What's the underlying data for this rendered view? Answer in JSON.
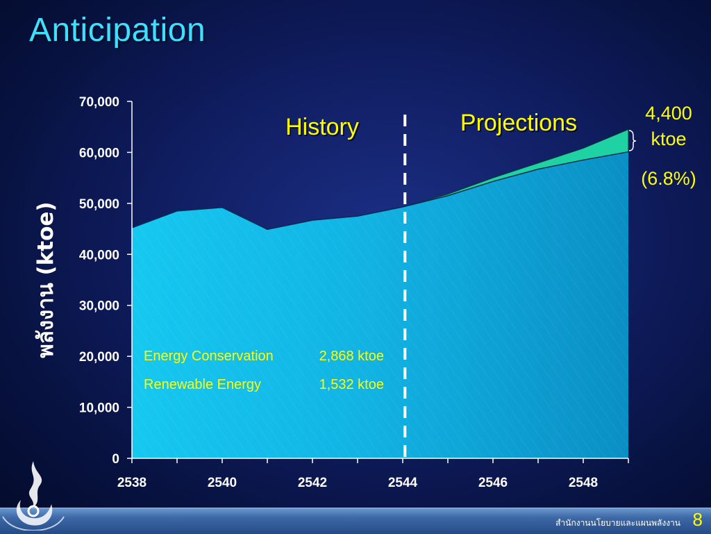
{
  "slide": {
    "title": "Anticipation",
    "footer_org": "สำนักงานนโยบายและแผนพลังงาน",
    "page_number": "8"
  },
  "colors": {
    "history_fill": "#16c8f0",
    "projection_fill": "#0a8fc4",
    "wedge_fill": "#1ed2a4",
    "label_yellow": "#ffff00",
    "title_cyan": "#3fe0ff"
  },
  "chart_data": {
    "type": "area",
    "ylabel": "พลังงาน (ktoe)",
    "ylim": [
      0,
      70000
    ],
    "y_ticks": [
      "0",
      "10,000",
      "20,000",
      "30,000",
      "40,000",
      "50,000",
      "60,000",
      "70,000"
    ],
    "y_tick_values": [
      0,
      10000,
      20000,
      30000,
      40000,
      50000,
      60000,
      70000
    ],
    "x_ticks": [
      "2538",
      "2540",
      "2542",
      "2544",
      "2546",
      "2548"
    ],
    "x_tick_values": [
      2538,
      2540,
      2542,
      2544,
      2546,
      2548
    ],
    "xlim": [
      2538,
      2549
    ],
    "divider_year": 2544.05,
    "series": [
      {
        "x": [
          2538,
          2539,
          2540,
          2541,
          2542,
          2543,
          2544,
          2545,
          2546,
          2547,
          2548,
          2549
        ],
        "values": [
          45200,
          48500,
          49200,
          44900,
          46700,
          47500,
          49300,
          51500,
          54300,
          56700,
          58500,
          60100
        ]
      },
      {
        "x": [
          2544,
          2545,
          2546,
          2547,
          2548,
          2549
        ],
        "values": [
          49300,
          51800,
          55000,
          57900,
          60800,
          64500
        ]
      }
    ],
    "annotations": {
      "history": "History",
      "projections": "Projections",
      "savings_value": "4,400",
      "savings_unit": "ktoe",
      "savings_pct": "(6.8%)",
      "breakdown": [
        {
          "label": "Energy Conservation",
          "value": "2,868 ktoe"
        },
        {
          "label": "Renewable Energy",
          "value": "1,532 ktoe"
        }
      ]
    }
  }
}
